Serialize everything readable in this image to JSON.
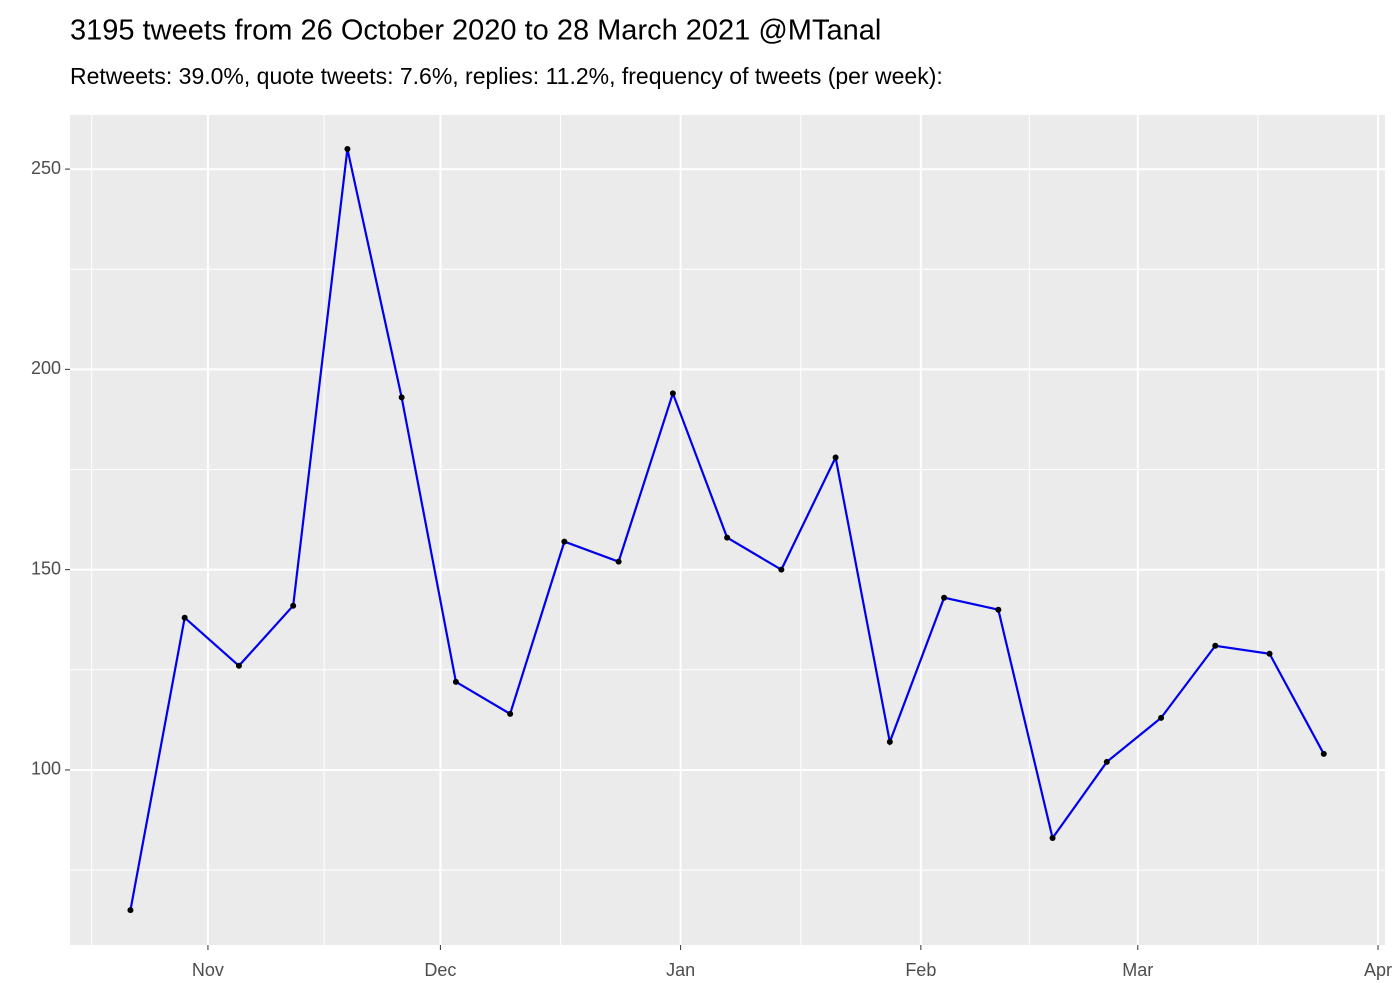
{
  "chart_data": {
    "type": "line",
    "title": "3195 tweets from 26 October 2020 to 28 March 2021 @MTanal",
    "subtitle": "Retweets: 39.0%, quote tweets: 7.6%, replies: 11.2%, frequency of tweets (per week):",
    "x": [
      -10,
      -3,
      4,
      11,
      18,
      25,
      32,
      39,
      46,
      53,
      60,
      67,
      74,
      81,
      88,
      95,
      102,
      109,
      116,
      123,
      130,
      137,
      144
    ],
    "series": [
      {
        "name": "tweets",
        "color": "#0000ee",
        "values": [
          65,
          138,
          126,
          141,
          255,
          193,
          122,
          114,
          157,
          152,
          194,
          158,
          150,
          178,
          107,
          143,
          140,
          83,
          102,
          113,
          131,
          129,
          104
        ]
      }
    ],
    "xlim": [
      -17.8,
      151.9
    ],
    "xticks": [
      {
        "value": 0,
        "label": "Nov"
      },
      {
        "value": 30,
        "label": "Dec"
      },
      {
        "value": 61,
        "label": "Jan"
      },
      {
        "value": 92,
        "label": "Feb"
      },
      {
        "value": 120,
        "label": "Mar"
      },
      {
        "value": 151,
        "label": "Apr"
      }
    ],
    "x_minor_ticks": [
      -15,
      15,
      45.5,
      76.5,
      106,
      135.5
    ],
    "ylim": [
      56.3,
      263.5
    ],
    "yticks": [
      100,
      150,
      200,
      250
    ],
    "y_minor_ticks": [
      75,
      125,
      175,
      225
    ],
    "grid": true
  }
}
